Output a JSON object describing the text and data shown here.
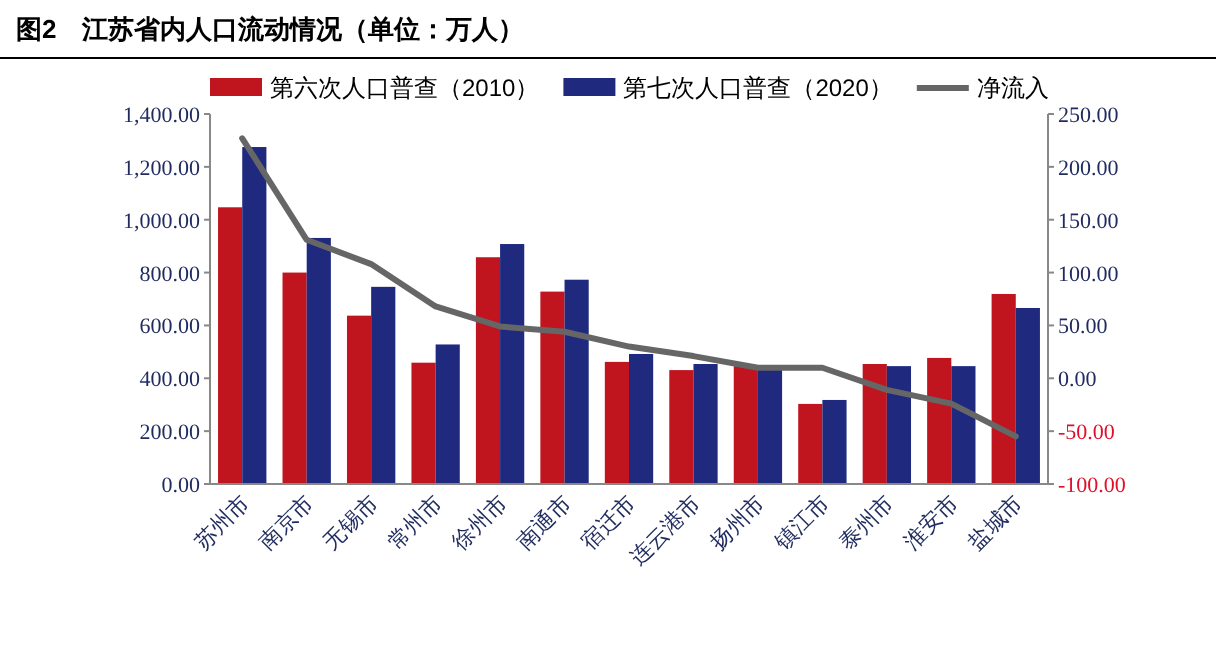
{
  "chart_data": {
    "type": "bar",
    "title": "图2　江苏省内人口流动情况（单位：万人）",
    "categories": [
      "苏州市",
      "南京市",
      "无锡市",
      "常州市",
      "徐州市",
      "南通市",
      "宿迁市",
      "连云港市",
      "扬州市",
      "镇江市",
      "泰州市",
      "淮安市",
      "盐城市"
    ],
    "series": [
      {
        "name": "第六次人口普查（2010）",
        "color": "#c0141f",
        "values": [
          1047,
          800,
          637,
          459,
          858,
          728,
          462,
          431,
          446,
          303,
          454,
          477,
          719
        ]
      },
      {
        "name": "第七次人口普查（2020）",
        "color": "#1f2a7f",
        "values": [
          1275,
          931,
          746,
          528,
          908,
          773,
          492,
          454,
          446,
          318,
          446,
          446,
          666
        ]
      },
      {
        "name": "净流入",
        "type": "line",
        "axis": "y2",
        "color": "#666666",
        "values": [
          227,
          131,
          108,
          68,
          49,
          44,
          30,
          21,
          10,
          10,
          -11,
          -24,
          -55
        ]
      }
    ],
    "ylim": [
      0,
      1400
    ],
    "yticks": [
      {
        "value": 0,
        "label": "0.00"
      },
      {
        "value": 200,
        "label": "200.00"
      },
      {
        "value": 400,
        "label": "400.00"
      },
      {
        "value": 600,
        "label": "600.00"
      },
      {
        "value": 800,
        "label": "800.00"
      },
      {
        "value": 1000,
        "label": "1,000.00"
      },
      {
        "value": 1200,
        "label": "1,200.00"
      },
      {
        "value": 1400,
        "label": "1,400.00"
      }
    ],
    "y2lim": [
      -100,
      250
    ],
    "y2ticks": [
      {
        "value": -100,
        "label": "-100.00"
      },
      {
        "value": -50,
        "label": "-50.00"
      },
      {
        "value": 0,
        "label": "0.00"
      },
      {
        "value": 50,
        "label": "50.00"
      },
      {
        "value": 100,
        "label": "100.00"
      },
      {
        "value": 150,
        "label": "150.00"
      },
      {
        "value": 200,
        "label": "200.00"
      },
      {
        "value": 250,
        "label": "250.00"
      }
    ],
    "legend": "top",
    "grid": false
  }
}
